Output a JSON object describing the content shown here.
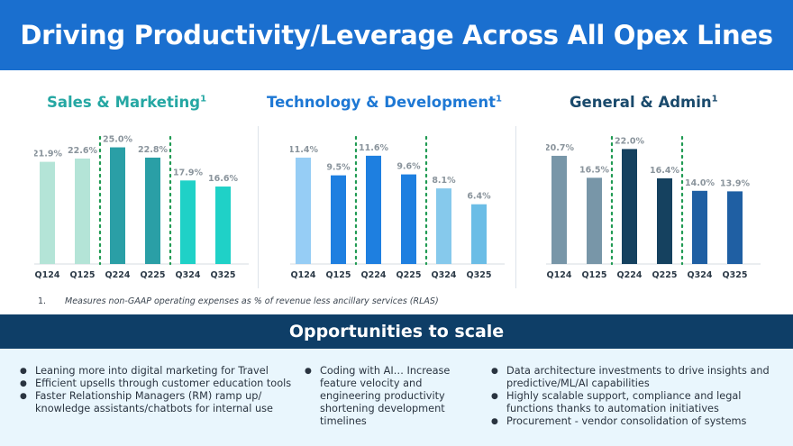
{
  "header": {
    "title": "Driving Productivity/Leverage Across All Opex Lines"
  },
  "chart_titles": [
    {
      "label": "Sales & Marketing",
      "sup": "1"
    },
    {
      "label": "Technology & Development",
      "sup": "1"
    },
    {
      "label": "General & Admin",
      "sup": "1"
    }
  ],
  "chart_data": [
    {
      "type": "bar",
      "title": "Sales & Marketing",
      "unit": "%",
      "categories": [
        "Q124",
        "Q125",
        "Q224",
        "Q225",
        "Q324",
        "Q325"
      ],
      "values": [
        21.9,
        22.6,
        25.0,
        22.8,
        17.9,
        16.6
      ],
      "labels": [
        "21.9%",
        "22.6%",
        "25.0%",
        "22.8%",
        "17.9%",
        "16.6%"
      ],
      "colors": [
        "#b4e4d7",
        "#b4e4d7",
        "#2a9fa6",
        "#2a9fa6",
        "#1fd1c7",
        "#1fd1c7"
      ],
      "label_color": "#8a949c",
      "ylim": [
        0,
        28
      ]
    },
    {
      "type": "bar",
      "title": "Technology & Development",
      "unit": "%",
      "categories": [
        "Q124",
        "Q125",
        "Q224",
        "Q225",
        "Q324",
        "Q325"
      ],
      "values": [
        11.4,
        9.5,
        11.6,
        9.6,
        8.1,
        6.4
      ],
      "labels": [
        "11.4%",
        "9.5%",
        "11.6%",
        "9.6%",
        "8.1%",
        "6.4%"
      ],
      "colors": [
        "#96cdf5",
        "#1e7fe0",
        "#1e7fe0",
        "#1e7fe0",
        "#86c9ec",
        "#6bbde6"
      ],
      "label_color": "#8a949c",
      "ylim": [
        0,
        14
      ]
    },
    {
      "type": "bar",
      "title": "General & Admin",
      "unit": "%",
      "categories": [
        "Q124",
        "Q125",
        "Q224",
        "Q225",
        "Q324",
        "Q325"
      ],
      "values": [
        20.7,
        16.5,
        22.0,
        16.4,
        14.0,
        13.9
      ],
      "labels": [
        "20.7%",
        "16.5%",
        "22.0%",
        "16.4%",
        "14.0%",
        "13.9%"
      ],
      "colors": [
        "#7896a8",
        "#7896a8",
        "#15415f",
        "#15415f",
        "#1f5fa3",
        "#1f5fa3"
      ],
      "label_color": "#8a949c",
      "ylim": [
        0,
        25
      ]
    }
  ],
  "footnote": {
    "number": "1.",
    "text": "Measures non-GAAP operating expenses as % of revenue less ancillary services (RLAS)"
  },
  "opportunities": {
    "title": "Opportunities to scale",
    "columns": [
      [
        "Leaning more into digital marketing for Travel",
        "Efficient upsells through customer education tools",
        "Faster Relationship Managers (RM) ramp up/ knowledge assistants/chatbots for internal use"
      ],
      [
        "Coding with AI… Increase feature velocity and engineering productivity shortening development timelines"
      ],
      [
        "Data architecture investments to drive insights and predictive/ML/AI  capabilities",
        "Highly scalable support, compliance and  legal functions thanks to automation initiatives",
        "Procurement - vendor  consolidation of systems"
      ]
    ]
  },
  "colors": {
    "header_bg": "#1a6fcf",
    "opp_bar_bg": "#0e3e67",
    "panel_bg": "#e9f6fd",
    "divider_dots": "#1f9a52"
  }
}
